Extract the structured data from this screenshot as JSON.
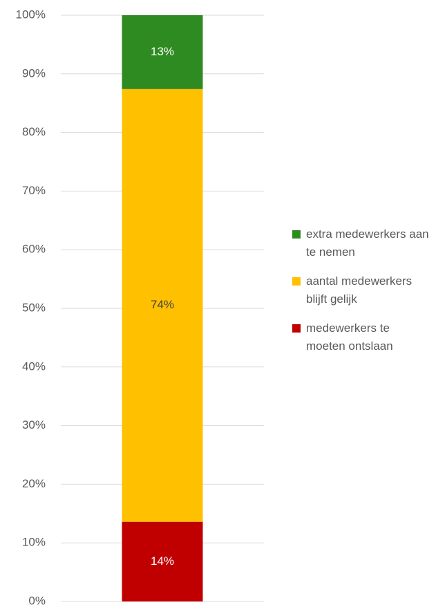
{
  "chart_data": {
    "type": "stacked_bar_100",
    "categories": [
      null
    ],
    "series": [
      {
        "name": "medewerkers te moeten ontslaan",
        "color": "#c00000",
        "values": [
          13.6
        ],
        "value_labels": [
          "14%"
        ]
      },
      {
        "name": "aantal medewerkers blijft gelijk",
        "color": "#ffc000",
        "values": [
          73.8
        ],
        "value_labels": [
          "74%"
        ]
      },
      {
        "name": "extra medewerkers aan te nemen",
        "color": "#2e8b22",
        "values": [
          12.6
        ],
        "value_labels": [
          "13%"
        ]
      }
    ],
    "ylim": [
      0,
      100
    ],
    "yticks": [
      {
        "value": 0,
        "label": "0%"
      },
      {
        "value": 10,
        "label": "10%"
      },
      {
        "value": 20,
        "label": "20%"
      },
      {
        "value": 30,
        "label": "30%"
      },
      {
        "value": 40,
        "label": "40%"
      },
      {
        "value": 50,
        "label": "50%"
      },
      {
        "value": 60,
        "label": "60%"
      },
      {
        "value": 70,
        "label": "70%"
      },
      {
        "value": 80,
        "label": "80%"
      },
      {
        "value": 90,
        "label": "90%"
      },
      {
        "value": 100,
        "label": "100%"
      }
    ],
    "grid": true,
    "legend": "right"
  }
}
